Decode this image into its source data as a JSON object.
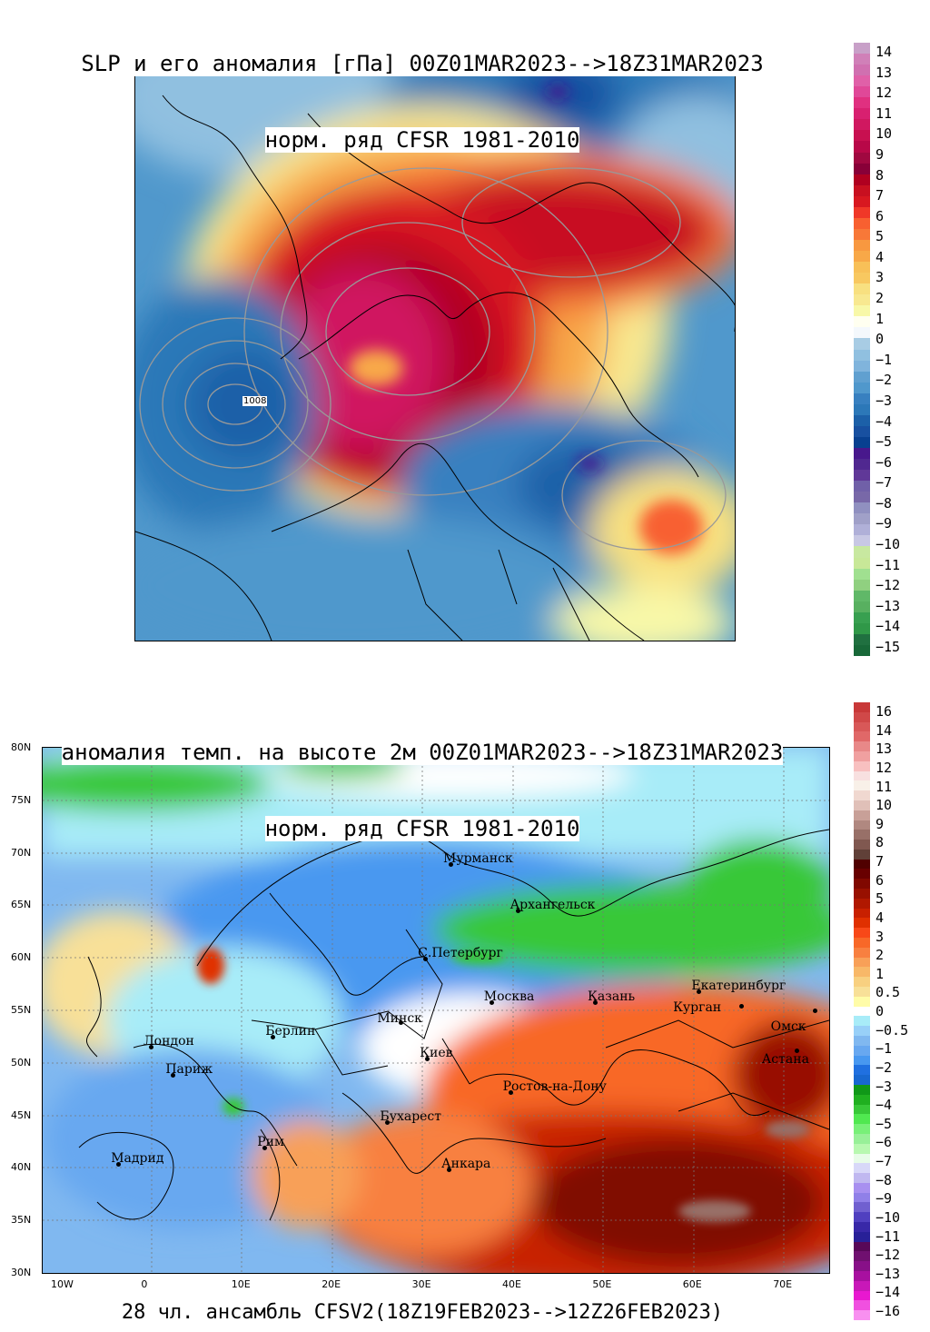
{
  "panel1": {
    "title_line1": "SLP и его аномалия [гПа] 00Z01MAR2023-->18Z31MAR2023",
    "title_line2": "норм. ряд CFSR 1981-2010",
    "contour_label": "1008",
    "colorbar": {
      "labels": [
        "14",
        "13",
        "12",
        "11",
        "10",
        "9",
        "8",
        "7",
        "6",
        "5",
        "4",
        "3",
        "2",
        "1",
        "0",
        "−1",
        "−2",
        "−3",
        "−4",
        "−5",
        "−6",
        "−7",
        "−8",
        "−9",
        "−10",
        "−11",
        "−12",
        "−13",
        "−14",
        "−15"
      ],
      "colors": [
        "#c8a0c8",
        "#d080b8",
        "#d070b0",
        "#e060a8",
        "#e04898",
        "#e03080",
        "#d82070",
        "#d01860",
        "#c81050",
        "#b80848",
        "#a00840",
        "#880038",
        "#b00020",
        "#c81020",
        "#d81820",
        "#f03828",
        "#f86030",
        "#f87838",
        "#f89840",
        "#f8a848",
        "#f8c058",
        "#f8c860",
        "#f8e080",
        "#f8e890",
        "#f8f8a8",
        "#fffff0",
        "#f4f8fc",
        "#a8cce4",
        "#90c0e0",
        "#80b4dc",
        "#60a0d0",
        "#5098cc",
        "#3880c0",
        "#2c78b8",
        "#1c60a8",
        "#1850a0",
        "#084090",
        "#48188c",
        "#502890",
        "#603898",
        "#7060a8",
        "#7868a8",
        "#9090c0",
        "#a0a0c8",
        "#b0b0d8",
        "#c8c8e4",
        "#c8e8a0",
        "#c8e898",
        "#a0e090",
        "#90d080",
        "#60b868",
        "#58b060",
        "#38a050",
        "#309848",
        "#207040",
        "#186838"
      ]
    }
  },
  "panel2": {
    "title_line1": "аномалия темп. на высоте 2м 00Z01MAR2023-->18Z31MAR2023",
    "title_line2": "норм. ряд CFSR 1981-2010",
    "footer": "28 чл. ансамбль CFSV2(18Z19FEB2023-->12Z26FEB2023)",
    "lat_ticks": [
      "80N",
      "75N",
      "70N",
      "65N",
      "60N",
      "55N",
      "50N",
      "45N",
      "40N",
      "35N",
      "30N"
    ],
    "lon_ticks": [
      "10W",
      "0",
      "10E",
      "20E",
      "30E",
      "40E",
      "50E",
      "60E",
      "70E"
    ],
    "cities": [
      {
        "name": "Мурманск",
        "lon": 33.1,
        "lat": 68.9
      },
      {
        "name": "Архангельск",
        "lon": 40.5,
        "lat": 64.5
      },
      {
        "name": "С.Петербург",
        "lon": 30.3,
        "lat": 59.9
      },
      {
        "name": "Москва",
        "lon": 37.6,
        "lat": 55.75
      },
      {
        "name": "Казань",
        "lon": 49.1,
        "lat": 55.8
      },
      {
        "name": "Екатеринбург",
        "lon": 60.6,
        "lat": 56.8
      },
      {
        "name": "Курган",
        "lon": 65.3,
        "lat": 55.4
      },
      {
        "name": "Омск",
        "lon": 73.4,
        "lat": 55.0
      },
      {
        "name": "Астана",
        "lon": 71.4,
        "lat": 51.2
      },
      {
        "name": "Минск",
        "lon": 27.6,
        "lat": 53.9
      },
      {
        "name": "Берлин",
        "lon": 13.4,
        "lat": 52.5
      },
      {
        "name": "Лондон",
        "lon": -0.1,
        "lat": 51.5
      },
      {
        "name": "Париж",
        "lon": 2.35,
        "lat": 48.85
      },
      {
        "name": "Киев",
        "lon": 30.5,
        "lat": 50.45
      },
      {
        "name": "Ростов-на-Дону",
        "lon": 39.7,
        "lat": 47.2
      },
      {
        "name": "Бухарест",
        "lon": 26.1,
        "lat": 44.4
      },
      {
        "name": "Рим",
        "lon": 12.5,
        "lat": 41.9
      },
      {
        "name": "Мадрид",
        "lon": -3.7,
        "lat": 40.4
      },
      {
        "name": "Анкара",
        "lon": 32.9,
        "lat": 39.9
      }
    ],
    "colorbar": {
      "labels": [
        "16",
        "14",
        "13",
        "12",
        "11",
        "10",
        "9",
        "8",
        "7",
        "6",
        "5",
        "4",
        "3",
        "2",
        "1",
        "0.5",
        "0",
        "−0.5",
        "−1",
        "−2",
        "−3",
        "−4",
        "−5",
        "−6",
        "−7",
        "−8",
        "−9",
        "−10",
        "−11",
        "−12",
        "−13",
        "−14",
        "−16"
      ],
      "colors": [
        "#c83838",
        "#d04848",
        "#d85858",
        "#e06868",
        "#e88888",
        "#f0a0a0",
        "#f8c0c0",
        "#f8e0e0",
        "#f8f0e8",
        "#f0d8d0",
        "#e0c0b8",
        "#c8a098",
        "#b08880",
        "#987068",
        "#805850",
        "#604038",
        "#500000",
        "#680000",
        "#800800",
        "#981000",
        "#b01800",
        "#c82000",
        "#e03000",
        "#f84818",
        "#f86828",
        "#f88040",
        "#f8a058",
        "#f8b868",
        "#f8d080",
        "#f8e098",
        "#fffca8",
        "#ffffff",
        "#a8ecf8",
        "#98d0f8",
        "#80b8f0",
        "#68a8f0",
        "#4898f0",
        "#2070e0",
        "#1868d0",
        "#109818",
        "#20b020",
        "#38c838",
        "#50e850",
        "#78f078",
        "#98f098",
        "#b8f8b0",
        "#e8fce8",
        "#d8d8f8",
        "#c0b8f0",
        "#a890f0",
        "#9080e8",
        "#7060d0",
        "#5040c0",
        "#3828a8",
        "#282098",
        "#580858",
        "#701070",
        "#881088",
        "#a810a0",
        "#c818b8",
        "#e818d0",
        "#f050e0",
        "#f890f0"
      ]
    }
  }
}
